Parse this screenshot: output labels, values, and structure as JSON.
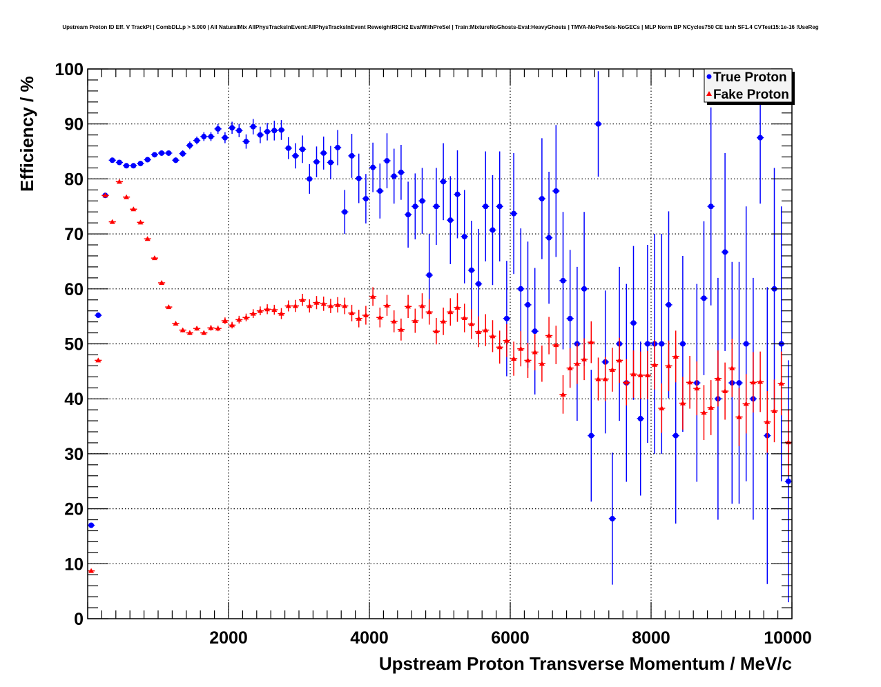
{
  "chart_data": {
    "type": "scatter",
    "title": "Upstream Proton ID Eff. V TrackPt | CombDLLp > 5.000 | All NaturalMix AllPhysTracksInEvent:AllPhysTracksInEvent ReweightRICH2 EvalWithPreSel | Train:MixtureNoGhosts-Eval:HeavyGhosts | TMVA-NoPreSels-NoGECs | MLP Norm BP NCycles750 CE tanh SF1.4 CVTest15:1e-16 !UseReg",
    "xlabel": "Upstream Proton Transverse Momentum / MeV/c",
    "ylabel": "Efficiency / %",
    "xlim": [
      0,
      10000
    ],
    "ylim": [
      0,
      100
    ],
    "x_ticks": [
      2000,
      4000,
      6000,
      8000,
      10000
    ],
    "y_ticks": [
      0,
      10,
      20,
      30,
      40,
      50,
      60,
      70,
      80,
      90,
      100
    ],
    "x_tick_labels": [
      "2000",
      "4000",
      "6000",
      "8000",
      "10000"
    ],
    "y_tick_labels": [
      "0",
      "10",
      "20",
      "30",
      "40",
      "50",
      "60",
      "70",
      "80",
      "90",
      "100"
    ],
    "grid": true,
    "legend_position": "top-right",
    "bin_width": 100,
    "x_first_bin_center": 50,
    "series": [
      {
        "name": "True Proton",
        "color": "#0000ff",
        "marker": "circle",
        "values": [
          17,
          55.2,
          77,
          83.4,
          83,
          82.4,
          82.4,
          82.8,
          83.5,
          84.4,
          84.7,
          84.7,
          83.4,
          84.6,
          86.1,
          87,
          87.7,
          87.7,
          89.1,
          87.5,
          89.3,
          88.8,
          86.8,
          89.5,
          88,
          88.6,
          88.8,
          88.9,
          85.6,
          84.2,
          85.4,
          80,
          83.1,
          84.7,
          83,
          85.7,
          74,
          84.2,
          80.1,
          76.4,
          82.1,
          77.8,
          83.3,
          80.5,
          81.2,
          73.5,
          75,
          76,
          62.5,
          75,
          79.5,
          72.5,
          77.2,
          69.5,
          63.4,
          60.9,
          75,
          70.7,
          75,
          54.6,
          73.7,
          60,
          57.1,
          52.3,
          76.4,
          69.3,
          77.8,
          61.5,
          54.6,
          50,
          60,
          33.3,
          90,
          46.7,
          18.2,
          50,
          42.9,
          53.8,
          36.4,
          50,
          50,
          50,
          57.1,
          33.3,
          50,
          null,
          42.9,
          58.3,
          75,
          40,
          66.7,
          42.9,
          42.9,
          50,
          40,
          87.5,
          33.3,
          60,
          50,
          25
        ],
        "errors": [
          0.3,
          0.4,
          0.4,
          0.3,
          0.3,
          0.3,
          0.3,
          0.3,
          0.3,
          0.3,
          0.4,
          0.4,
          0.5,
          0.6,
          0.7,
          0.7,
          0.8,
          0.8,
          0.9,
          1,
          1.1,
          1.2,
          1.3,
          1.4,
          1.5,
          1.6,
          1.8,
          1.8,
          2,
          2.3,
          2.5,
          2.7,
          2.8,
          3,
          3,
          3.2,
          4,
          4,
          4.5,
          4.5,
          4.5,
          5,
          5,
          5,
          5,
          6,
          6,
          6,
          7.5,
          7,
          7,
          8,
          8,
          8.5,
          9,
          10,
          10,
          10,
          10,
          10.5,
          11,
          11,
          11.5,
          11.5,
          11,
          12,
          12,
          12.5,
          12.5,
          14,
          14,
          12,
          9.6,
          13,
          12,
          14,
          18,
          14,
          14,
          18,
          20,
          20,
          17,
          16,
          16,
          0,
          18,
          14,
          18,
          22,
          18,
          22,
          22,
          25,
          22,
          12,
          27,
          22,
          25,
          22
        ]
      },
      {
        "name": "Fake Proton",
        "color": "#ff0000",
        "marker": "triangle",
        "values": [
          8.7,
          47,
          77,
          72.2,
          79.5,
          76.7,
          74.5,
          72.1,
          69.1,
          65.6,
          61.1,
          56.7,
          53.7,
          52.5,
          52,
          52.8,
          52,
          52.9,
          52.8,
          54.2,
          53.4,
          54.4,
          54.8,
          55.5,
          56,
          56.3,
          56.2,
          55.5,
          56.9,
          56.9,
          58,
          56.9,
          57.5,
          57.3,
          56.9,
          57.1,
          56.9,
          55.6,
          54.6,
          55.2,
          58.6,
          54.8,
          57,
          54.1,
          52.6,
          56.8,
          54.2,
          56.9,
          55.8,
          52.3,
          54.1,
          55.8,
          56.6,
          54.7,
          53.6,
          52.2,
          52.5,
          51.4,
          49.4,
          50.6,
          47.3,
          49.1,
          47,
          48.5,
          46.4,
          51.5,
          49.8,
          40.8,
          45.6,
          46.4,
          47.2,
          50.3,
          43.6,
          43.6,
          45.3,
          47,
          43,
          44.5,
          44.3,
          44.3,
          46.2,
          38.3,
          46,
          47.7,
          39.2,
          43,
          41.9,
          37.5,
          38.4,
          43.7,
          41.4,
          45.6,
          36.7,
          39.1,
          43,
          43.1,
          35.8,
          37.8,
          42.8,
          32.1
        ],
        "errors": [
          0.3,
          0.3,
          0.3,
          0.3,
          0.3,
          0.3,
          0.3,
          0.3,
          0.3,
          0.3,
          0.3,
          0.3,
          0.3,
          0.4,
          0.4,
          0.4,
          0.4,
          0.5,
          0.5,
          0.6,
          0.6,
          0.7,
          0.7,
          0.8,
          0.8,
          0.9,
          0.9,
          1,
          1,
          1.1,
          1.1,
          1.2,
          1.2,
          1.3,
          1.3,
          1.4,
          1.5,
          1.5,
          1.6,
          1.7,
          1.7,
          1.8,
          1.9,
          2,
          2,
          2.1,
          2.2,
          2.3,
          2.3,
          2.4,
          2.5,
          2.5,
          2.6,
          2.6,
          2.7,
          2.8,
          2.9,
          2.9,
          3,
          3,
          3.1,
          3.2,
          3.2,
          3.3,
          3.3,
          3.4,
          3.5,
          3.5,
          3.6,
          3.7,
          3.8,
          3.8,
          3.9,
          4,
          4,
          4.1,
          4.2,
          4.3,
          4.3,
          4.4,
          4.5,
          4.5,
          4.6,
          4.7,
          4.8,
          4.8,
          4.9,
          5,
          5,
          5.1,
          5.2,
          5.3,
          5.3,
          5.4,
          5.5,
          5.5,
          5.6,
          5.7,
          5.8,
          6
        ]
      }
    ]
  }
}
